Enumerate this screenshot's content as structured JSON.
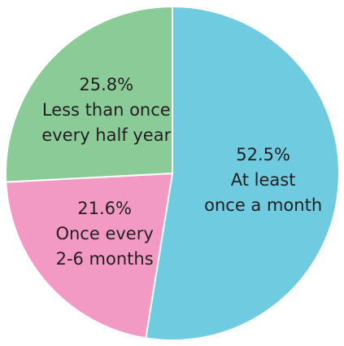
{
  "chart_data": {
    "type": "pie",
    "categories": [
      [
        "At least",
        "once a month"
      ],
      [
        "Once every",
        "2-6 months"
      ],
      [
        "Less than once",
        "every half year"
      ]
    ],
    "values": [
      52.5,
      21.6,
      25.8
    ],
    "value_labels": [
      "52.5%",
      "21.6%",
      "25.8%"
    ],
    "colors": [
      "#6ecbe0",
      "#f29ac3",
      "#8acb98"
    ]
  }
}
